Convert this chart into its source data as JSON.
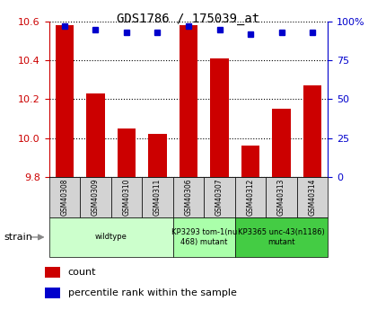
{
  "title": "GDS1786 / 175039_at",
  "samples": [
    "GSM40308",
    "GSM40309",
    "GSM40310",
    "GSM40311",
    "GSM40306",
    "GSM40307",
    "GSM40312",
    "GSM40313",
    "GSM40314"
  ],
  "count_values": [
    10.58,
    10.23,
    10.05,
    10.02,
    10.58,
    10.41,
    9.96,
    10.15,
    10.27
  ],
  "percentile_values": [
    97,
    95,
    93,
    93,
    97,
    95,
    92,
    93,
    93
  ],
  "ylim_left": [
    9.8,
    10.6
  ],
  "ylim_right": [
    0,
    100
  ],
  "yticks_left": [
    9.8,
    10.0,
    10.2,
    10.4,
    10.6
  ],
  "yticks_right": [
    0,
    25,
    50,
    75,
    100
  ],
  "bar_color": "#cc0000",
  "dot_color": "#0000cc",
  "groups": [
    {
      "label": "wildtype",
      "start": 0,
      "end": 4,
      "color": "#ccffcc"
    },
    {
      "label": "KP3293 tom-1(nu\n468) mutant",
      "start": 4,
      "end": 6,
      "color": "#aaffaa"
    },
    {
      "label": "KP3365 unc-43(n1186)\nmutant",
      "start": 6,
      "end": 9,
      "color": "#44cc44"
    }
  ],
  "left_tick_color": "#cc0000",
  "right_tick_color": "#0000cc",
  "bar_width": 0.6,
  "dot_marker": "s",
  "dot_markersize": 5,
  "bg_color": "#ffffff",
  "gray_color": "#d3d3d3",
  "grid_color": "#000000",
  "legend_square_size": 8
}
